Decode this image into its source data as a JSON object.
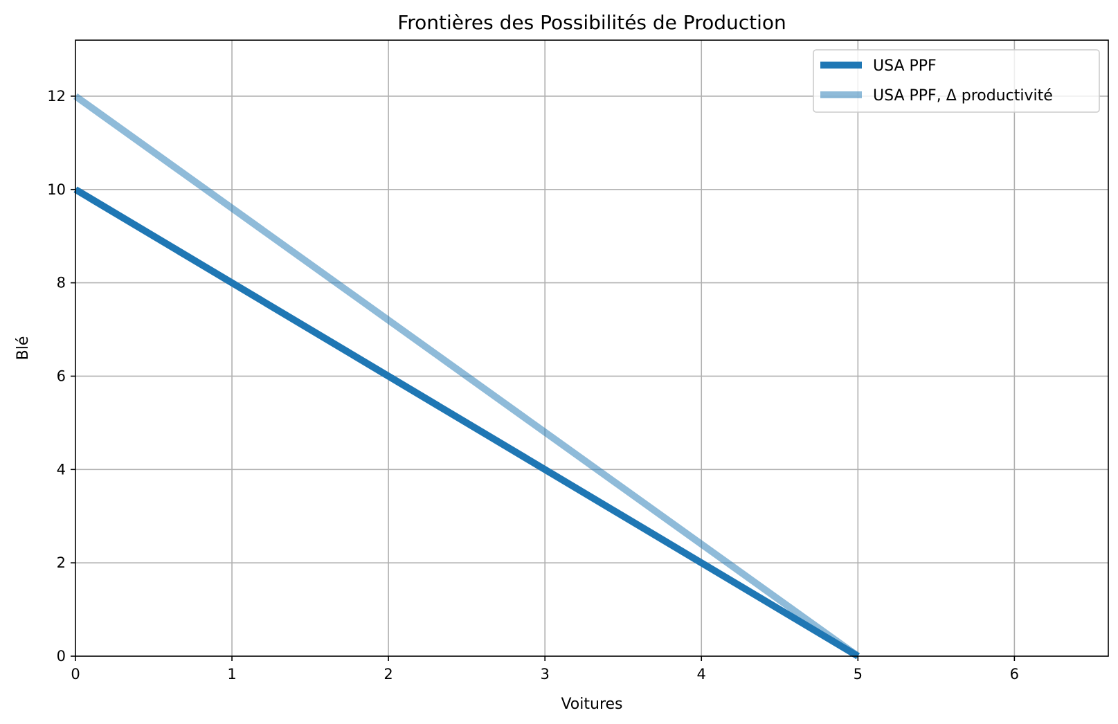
{
  "chart_data": {
    "type": "line",
    "title": "Frontières des Possibilités de Production",
    "xlabel": "Voitures",
    "ylabel": "Blé",
    "xlim": [
      0,
      6.6
    ],
    "ylim": [
      0,
      13.2
    ],
    "xticks": [
      0,
      1,
      2,
      3,
      4,
      5,
      6
    ],
    "yticks": [
      0,
      2,
      4,
      6,
      8,
      10,
      12
    ],
    "grid": true,
    "legend_position": "top-right",
    "series": [
      {
        "name": "USA PPF",
        "x": [
          0,
          5
        ],
        "y": [
          10,
          0
        ],
        "color": "#1f77b4",
        "alpha": 1.0
      },
      {
        "name": "USA PPF, Δ productivité",
        "x": [
          0,
          5
        ],
        "y": [
          12,
          0
        ],
        "color": "#1f77b4",
        "alpha": 0.5
      }
    ]
  }
}
